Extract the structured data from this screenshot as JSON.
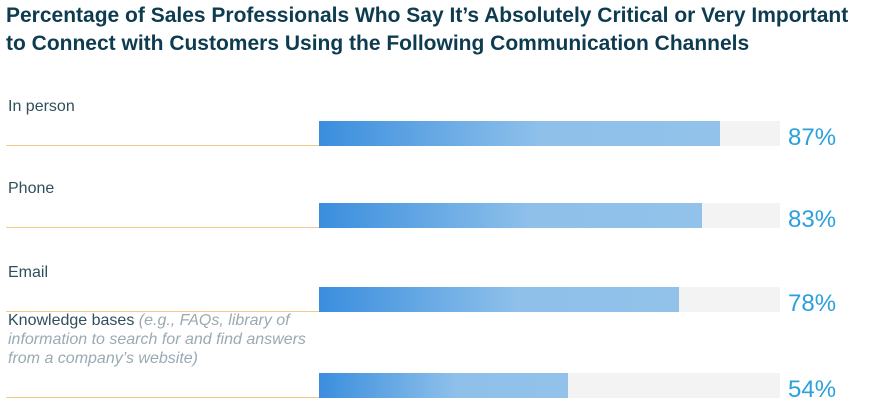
{
  "chart_data": {
    "type": "bar",
    "orientation": "horizontal",
    "title": "Percentage of Sales Professionals Who Say It’s Absolutely Critical or Very Important to Connect with Customers Using the Following Communication Channels",
    "categories": [
      "In person",
      "Phone",
      "Email",
      "Knowledge bases"
    ],
    "category_notes": [
      "",
      "",
      "",
      "(e.g., FAQs, library of information to search for and find answers from a company’s website)"
    ],
    "values": [
      87,
      83,
      78,
      54
    ],
    "value_labels": [
      "87%",
      "83%",
      "78%",
      "54%"
    ],
    "xlim": [
      0,
      100
    ],
    "grid": false,
    "colors": {
      "bar_start": "#3a8ede",
      "bar_end": "#92c2ea",
      "track": "#f3f3f3",
      "value_text": "#2aa0dc",
      "rule": "#f5c98a"
    }
  }
}
